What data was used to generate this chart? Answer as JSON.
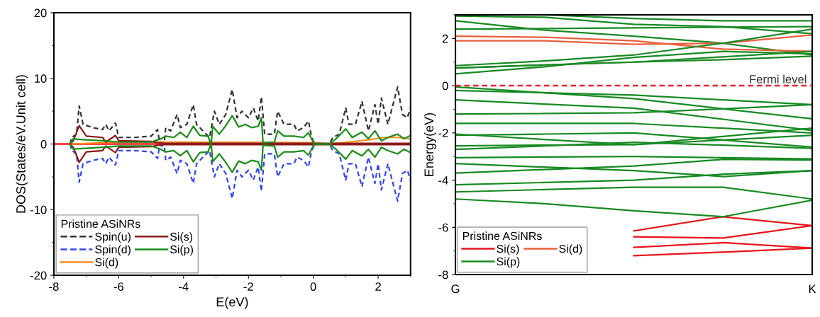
{
  "chart_data": [
    {
      "type": "line",
      "xlabel": "E(eV)",
      "ylabel": "DOS(States/eV.Unit cell)",
      "xlim": [
        -8,
        3
      ],
      "ylim": [
        -20,
        20
      ],
      "xticks": [
        -8,
        -6,
        -4,
        -2,
        0,
        2
      ],
      "yticks": [
        -20,
        -10,
        0,
        10,
        20
      ],
      "legend": "bottom left",
      "legend_title": "Pristine ASiNRs",
      "grid": false,
      "ref_lines": [
        {
          "axis": "y",
          "value": 0,
          "color": "#ff1a1a",
          "line_style": "solid"
        }
      ],
      "series": [
        {
          "name": "Spin(u)",
          "color": "#333333",
          "line_style": "dashed",
          "x": [
            -7.5,
            -7.45,
            -7.3,
            -7.22,
            -7.1,
            -6.8,
            -6.5,
            -6.4,
            -6.3,
            -6.1,
            -6.0,
            -5.5,
            -5.0,
            -4.8,
            -4.75,
            -4.6,
            -4.55,
            -4.4,
            -4.2,
            -4.1,
            -3.9,
            -3.7,
            -3.6,
            -3.4,
            -3.2,
            -3.05,
            -2.9,
            -2.7,
            -2.5,
            -2.35,
            -2.2,
            -2.0,
            -1.85,
            -1.7,
            -1.6,
            -1.5,
            -1.2,
            -1.1,
            -0.9,
            -0.6,
            -0.5,
            -0.3,
            -0.15,
            -0.05,
            0.05,
            0.5,
            0.6,
            0.8,
            1.0,
            1.1,
            1.3,
            1.5,
            1.7,
            1.9,
            2.0,
            2.1,
            2.3,
            2.6,
            2.75,
            2.9,
            3.0
          ],
          "values": [
            0,
            1,
            1.5,
            5.8,
            3,
            2.5,
            2.2,
            3,
            2,
            3.2,
            1,
            1,
            1.2,
            2.2,
            0.5,
            0,
            2.5,
            2,
            4.5,
            2.5,
            3,
            6,
            3,
            2,
            1,
            5,
            3,
            4.5,
            8.3,
            4,
            5,
            4,
            5.5,
            3.5,
            7.2,
            1.5,
            1.5,
            5,
            3,
            3,
            2,
            2.5,
            3.5,
            1,
            0,
            0,
            1,
            1.5,
            5.5,
            3,
            3,
            6.5,
            2,
            6,
            3,
            7,
            3,
            8.7,
            4.5,
            4,
            5.5
          ]
        },
        {
          "name": "Spin(d)",
          "color": "#3344ee",
          "line_style": "dashed",
          "x": [
            -7.5,
            -7.45,
            -7.3,
            -7.22,
            -7.1,
            -6.8,
            -6.5,
            -6.4,
            -6.3,
            -6.1,
            -6.0,
            -5.5,
            -5.0,
            -4.8,
            -4.75,
            -4.6,
            -4.55,
            -4.4,
            -4.2,
            -4.1,
            -3.9,
            -3.7,
            -3.6,
            -3.4,
            -3.2,
            -3.05,
            -2.9,
            -2.7,
            -2.5,
            -2.35,
            -2.2,
            -2.0,
            -1.85,
            -1.7,
            -1.6,
            -1.5,
            -1.2,
            -1.1,
            -0.9,
            -0.6,
            -0.5,
            -0.3,
            -0.15,
            -0.05,
            0.05,
            0.5,
            0.6,
            0.8,
            1.0,
            1.1,
            1.3,
            1.5,
            1.7,
            1.9,
            2.0,
            2.1,
            2.3,
            2.6,
            2.75,
            2.9,
            3.0
          ],
          "values": [
            0,
            -1,
            -1.5,
            -5.8,
            -3,
            -2.5,
            -2.2,
            -3,
            -2,
            -3.2,
            -1,
            -1,
            -1.2,
            -2.2,
            -0.5,
            0,
            -2.5,
            -2,
            -4.5,
            -2.5,
            -3,
            -6,
            -3,
            -2,
            -1,
            -5,
            -3,
            -4.5,
            -8.3,
            -4,
            -5,
            -4,
            -5.5,
            -3.5,
            -7.2,
            -1.5,
            -1.5,
            -5,
            -3,
            -3,
            -2,
            -2.5,
            -3.5,
            -1,
            0,
            0,
            -1,
            -1.5,
            -5.5,
            -3,
            -3,
            -6.5,
            -2,
            -6,
            -3,
            -7,
            -3,
            -8.7,
            -4.5,
            -4,
            -5.5
          ]
        },
        {
          "name": "Si(d)",
          "color": "#ff8c1a",
          "line_style": "solid",
          "x": [
            -7.5,
            -6,
            -4.8,
            0,
            0.5,
            1.5,
            2.2,
            2.6,
            3.0
          ],
          "values": [
            0,
            0.3,
            0.3,
            0.2,
            0,
            0.5,
            1,
            1,
            0.8
          ]
        },
        {
          "name": "Si(s)",
          "color": "#8b1a1a",
          "line_style": "solid",
          "x": [
            -7.5,
            -7.4,
            -7.22,
            -7.0,
            -6.5,
            -6.4,
            -6.1,
            -6.0,
            -5.0,
            -4.8,
            -4.6,
            3.0
          ],
          "values": [
            0,
            0.5,
            2.8,
            1.2,
            1,
            0.3,
            1.3,
            0.5,
            0.4,
            0.2,
            0.1,
            0.1
          ]
        },
        {
          "color": "#8b1a1a",
          "line_style": "solid",
          "x": [
            -7.5,
            -7.4,
            -7.22,
            -7.0,
            -6.5,
            -6.4,
            -6.1,
            -6.0,
            -5.0,
            -4.8,
            -4.6,
            3.0
          ],
          "values": [
            0,
            -0.5,
            -2.8,
            -1.2,
            -1,
            -0.3,
            -1.3,
            -0.5,
            -0.4,
            -0.2,
            -0.1,
            -0.1
          ]
        },
        {
          "name": "Si(p)",
          "color": "#1a8c1a",
          "line_style": "solid",
          "x": [
            -7.5,
            -7.4,
            -7.2,
            -6.5,
            -6.0,
            -5.0,
            -4.7,
            -4.55,
            -4.3,
            -4.1,
            -3.9,
            -3.7,
            -3.5,
            -3.25,
            -3.15,
            -3.1,
            -2.9,
            -2.7,
            -2.5,
            -2.3,
            -2.1,
            -1.9,
            -1.7,
            -1.6,
            -1.55,
            -1.2,
            -1.1,
            -0.9,
            -0.6,
            -0.3,
            -0.15,
            0,
            0.05,
            0.5,
            0.7,
            1.0,
            1.2,
            1.5,
            1.7,
            1.9,
            2.1,
            2.3,
            2.6,
            2.8,
            3.0
          ],
          "values": [
            0,
            0.8,
            0.7,
            0.5,
            0.3,
            0.3,
            0.8,
            1.2,
            1,
            1.8,
            1,
            2.7,
            1.3,
            1.2,
            0,
            2.7,
            1.5,
            2.8,
            4.3,
            2.6,
            3,
            2.5,
            2.7,
            4,
            0.2,
            0.3,
            2,
            1.2,
            1.2,
            1,
            1.7,
            0.3,
            0,
            0,
            0.8,
            2.3,
            1,
            1.8,
            0.8,
            2,
            0.5,
            1,
            1.5,
            0.8,
            1.3
          ]
        },
        {
          "color": "#1a8c1a",
          "line_style": "solid",
          "x": [
            -7.5,
            -7.4,
            -7.2,
            -6.5,
            -6.0,
            -5.0,
            -4.7,
            -4.55,
            -4.3,
            -4.1,
            -3.9,
            -3.7,
            -3.5,
            -3.25,
            -3.15,
            -3.1,
            -2.9,
            -2.7,
            -2.5,
            -2.3,
            -2.1,
            -1.9,
            -1.7,
            -1.6,
            -1.55,
            -1.2,
            -1.1,
            -0.9,
            -0.6,
            -0.3,
            -0.15,
            0,
            0.05,
            0.5,
            0.7,
            1.0,
            1.2,
            1.5,
            1.7,
            1.9,
            2.1,
            2.3,
            2.6,
            2.8,
            3.0
          ],
          "values": [
            0,
            -0.8,
            -0.7,
            -0.5,
            -0.3,
            -0.3,
            -0.8,
            -1.2,
            -1,
            -1.8,
            -1,
            -2.7,
            -1.3,
            -1.2,
            0,
            -2.7,
            -1.5,
            -2.8,
            -4.3,
            -2.6,
            -3,
            -2.5,
            -2.7,
            -4,
            -0.2,
            -0.3,
            -2,
            -1.2,
            -1.2,
            -1,
            -1.7,
            -0.3,
            0,
            0,
            -0.8,
            -2.3,
            -1,
            -1.8,
            -0.8,
            -2,
            -0.5,
            -1,
            -1.5,
            -0.8,
            -1.3
          ]
        }
      ]
    },
    {
      "type": "line",
      "ylabel": "Energy(eV)",
      "categories": [
        "G",
        null,
        null,
        null,
        "K"
      ],
      "ylim": [
        -8,
        3
      ],
      "yticks": [
        -8,
        -6,
        -4,
        -2,
        0,
        2
      ],
      "legend": "bottom left",
      "legend_title": "Pristine ASiNRs",
      "grid": false,
      "ref_lines": [
        {
          "axis": "y",
          "value": 0,
          "label": "Fermi level",
          "color": "#e8202a",
          "line_style": "dashed"
        }
      ],
      "series": [
        {
          "name": "Si(s)",
          "color": "#e8141c",
          "values": [
            null,
            null,
            -6.15,
            -5.55,
            -5.93
          ]
        },
        {
          "name": "Si(p)",
          "color": "#178a22",
          "values": [
            2.75,
            2.35,
            2.1,
            1.8,
            1.3
          ]
        },
        {
          "name": "Si(d)",
          "color": "#e8603c",
          "values": [
            2.1,
            2.05,
            1.9,
            1.55,
            1.45
          ]
        },
        {
          "color": "#e8603c",
          "values": [
            1.9,
            1.9,
            1.75,
            1.8,
            2.15
          ]
        },
        {
          "color": "#e8141c",
          "values": [
            null,
            null,
            -6.4,
            -6.45,
            -5.93
          ]
        },
        {
          "color": "#e8141c",
          "values": [
            null,
            null,
            -6.85,
            -6.65,
            -6.88
          ]
        },
        {
          "color": "#e8141c",
          "values": [
            null,
            null,
            -7.2,
            -7.05,
            -6.88
          ]
        },
        {
          "color": "#178a22",
          "values": [
            2.4,
            2.42,
            2.45,
            2.48,
            2.5
          ]
        },
        {
          "color": "#178a22",
          "values": [
            2.95,
            2.9,
            2.6,
            2.5,
            2.2
          ]
        },
        {
          "color": "#178a22",
          "values": [
            null,
            3.0,
            2.85,
            2.75,
            2.75
          ]
        },
        {
          "color": "#178a22",
          "values": [
            0.85,
            1.05,
            1.3,
            1.8,
            2.4
          ]
        },
        {
          "color": "#178a22",
          "values": [
            0.75,
            0.88,
            1.0,
            1.22,
            1.45
          ]
        },
        {
          "color": "#178a22",
          "values": [
            0.5,
            0.8,
            1.2,
            1.45,
            1.35
          ]
        },
        {
          "color": "#178a22",
          "values": [
            0.75,
            0.88,
            1.0,
            1.1,
            1.25
          ]
        },
        {
          "color": "#178a22",
          "values": [
            -0.05,
            -0.3,
            -0.55,
            -0.98,
            -1.4
          ]
        },
        {
          "color": "#178a22",
          "values": [
            -0.2,
            -0.3,
            -0.4,
            -0.6,
            -0.8
          ]
        },
        {
          "color": "#178a22",
          "values": [
            -0.6,
            -0.78,
            -0.95,
            -1.42,
            -1.9
          ]
        },
        {
          "color": "#178a22",
          "values": [
            -1.2,
            -1.18,
            -1.15,
            -0.98,
            -0.8
          ]
        },
        {
          "color": "#178a22",
          "values": [
            -1.6,
            -1.6,
            -1.6,
            -1.8,
            -2.0
          ]
        },
        {
          "color": "#178a22",
          "values": [
            -2.05,
            -2.28,
            -2.5,
            -2.15,
            -1.8
          ]
        },
        {
          "color": "#178a22",
          "values": [
            -2.1,
            -2.05,
            -2.0,
            -2.3,
            -2.6
          ]
        },
        {
          "color": "#178a22",
          "values": [
            -2.55,
            -2.52,
            -2.5,
            -2.3,
            -2.1
          ]
        },
        {
          "color": "#178a22",
          "values": [
            -2.7,
            -2.55,
            -2.4,
            -2.52,
            -2.65
          ]
        },
        {
          "color": "#178a22",
          "values": [
            -3.05,
            -3.02,
            -3.0,
            -3.05,
            -3.1
          ]
        },
        {
          "color": "#178a22",
          "values": [
            -3.3,
            -3.45,
            -3.6,
            -3.85,
            -3.6
          ]
        },
        {
          "color": "#178a22",
          "values": [
            -3.7,
            -3.55,
            -3.4,
            -3.12,
            -3.15
          ]
        },
        {
          "color": "#178a22",
          "values": [
            -4.2,
            -4.1,
            -4.0,
            -3.75,
            -3.6
          ]
        },
        {
          "color": "#178a22",
          "values": [
            -4.5,
            -4.4,
            -4.3,
            -4.3,
            -4.8
          ]
        },
        {
          "color": "#178a22",
          "values": [
            -4.8,
            -5.0,
            -5.3,
            -5.55,
            -4.85
          ]
        }
      ]
    }
  ]
}
